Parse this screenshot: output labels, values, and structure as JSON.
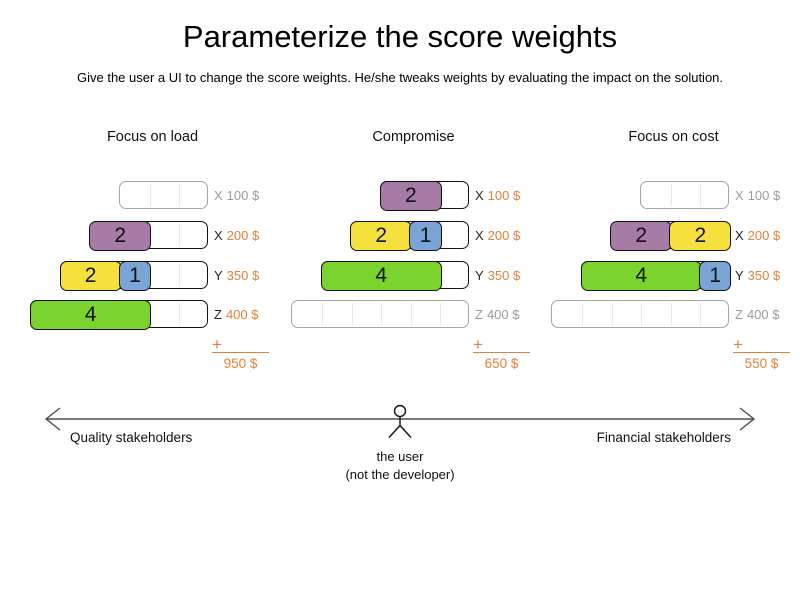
{
  "title": "Parameterize the score weights",
  "subtitle": "Give the user a UI to change the score weights. He/she tweaks weights by evaluating the impact on the solution.",
  "colors": {
    "purple": "#a67ba6",
    "yellow": "#f6e13c",
    "blue": "#7aa3d6",
    "green": "#7bd42d",
    "orange": "#e0813a",
    "inactive_gray": "#9b9b9b"
  },
  "sum_plus": "+",
  "panels": [
    {
      "title": "Focus on load",
      "total": "950 $",
      "rows": [
        {
          "constraint": "X",
          "price": "100 $",
          "cells": 3,
          "active": false,
          "blocks": []
        },
        {
          "constraint": "X",
          "price": "200 $",
          "cells": 4,
          "active": true,
          "blocks": [
            {
              "value": "2",
              "color": "purple",
              "span": 2
            }
          ]
        },
        {
          "constraint": "Y",
          "price": "350 $",
          "cells": 5,
          "active": true,
          "blocks": [
            {
              "value": "2",
              "color": "yellow",
              "span": 2
            },
            {
              "value": "1",
              "color": "blue",
              "span": 1
            }
          ]
        },
        {
          "constraint": "Z",
          "price": "400 $",
          "cells": 6,
          "active": true,
          "blocks": [
            {
              "value": "4",
              "color": "green",
              "span": 4
            }
          ]
        }
      ]
    },
    {
      "title": "Compromise",
      "total": "650 $",
      "rows": [
        {
          "constraint": "X",
          "price": "100 $",
          "cells": 3,
          "active": true,
          "blocks": [
            {
              "value": "2",
              "color": "purple",
              "span": 2
            }
          ]
        },
        {
          "constraint": "X",
          "price": "200 $",
          "cells": 4,
          "active": true,
          "blocks": [
            {
              "value": "2",
              "color": "yellow",
              "span": 2
            },
            {
              "value": "1",
              "color": "blue",
              "span": 1
            }
          ]
        },
        {
          "constraint": "Y",
          "price": "350 $",
          "cells": 5,
          "active": true,
          "blocks": [
            {
              "value": "4",
              "color": "green",
              "span": 4
            }
          ]
        },
        {
          "constraint": "Z",
          "price": "400 $",
          "cells": 6,
          "active": false,
          "blocks": []
        }
      ]
    },
    {
      "title": "Focus on cost",
      "total": "550 $",
      "rows": [
        {
          "constraint": "X",
          "price": "100 $",
          "cells": 3,
          "active": false,
          "blocks": []
        },
        {
          "constraint": "X",
          "price": "200 $",
          "cells": 4,
          "active": true,
          "blocks": [
            {
              "value": "2",
              "color": "purple",
              "span": 2
            },
            {
              "value": "2",
              "color": "yellow",
              "span": 2
            }
          ]
        },
        {
          "constraint": "Y",
          "price": "350 $",
          "cells": 5,
          "active": true,
          "blocks": [
            {
              "value": "4",
              "color": "green",
              "span": 4
            },
            {
              "value": "1",
              "color": "blue",
              "span": 1
            }
          ]
        },
        {
          "constraint": "Z",
          "price": "400 $",
          "cells": 6,
          "active": false,
          "blocks": []
        }
      ]
    }
  ],
  "axis": {
    "left_label": "Quality stakeholders",
    "right_label": "Financial stakeholders",
    "center_label_line1": "the user",
    "center_label_line2": "(not the developer)"
  }
}
